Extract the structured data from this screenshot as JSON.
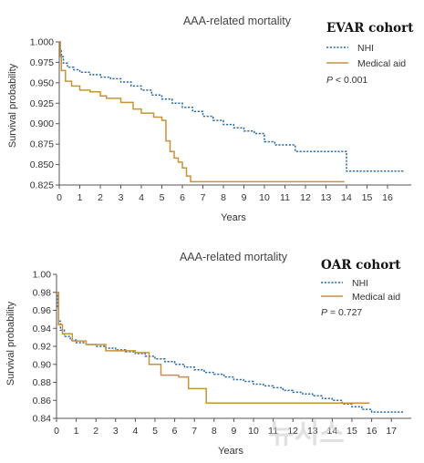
{
  "chart_data": [
    {
      "type": "line",
      "title": "AAA-related mortality",
      "cohort": "EVAR cohort",
      "xlabel": "Years",
      "ylabel": "Survival probability",
      "xlim": [
        0,
        17
      ],
      "ylim": [
        0.825,
        1.0
      ],
      "xticks": [
        "0",
        "1",
        "2",
        "3",
        "4",
        "5",
        "6",
        "7",
        "8",
        "9",
        "10",
        "11",
        "12",
        "13",
        "14",
        "15",
        "16"
      ],
      "yticks": [
        "1.000",
        "0.975",
        "0.950",
        "0.925",
        "0.900",
        "0.875",
        "0.850",
        "0.825"
      ],
      "pvalue": {
        "label": "P",
        "text": " < 0.001"
      },
      "legend_position": "top-right",
      "series": [
        {
          "name": "NHI",
          "color": "#2f6ea6",
          "style": "dashed",
          "x": [
            0,
            0.05,
            0.1,
            0.2,
            0.4,
            0.7,
            1,
            1.5,
            2,
            2.5,
            3,
            3.5,
            4,
            4.5,
            5,
            5.5,
            6,
            6.5,
            7,
            7.5,
            8,
            8.5,
            9,
            9.5,
            10,
            10.5,
            11,
            11.5,
            12,
            12.5,
            13,
            13.5,
            14,
            14.5,
            15,
            15.5,
            16,
            16.8
          ],
          "y": [
            1.0,
            0.99,
            0.982,
            0.974,
            0.969,
            0.966,
            0.963,
            0.96,
            0.957,
            0.955,
            0.951,
            0.946,
            0.941,
            0.935,
            0.93,
            0.925,
            0.92,
            0.915,
            0.909,
            0.904,
            0.899,
            0.895,
            0.891,
            0.888,
            0.878,
            0.874,
            0.874,
            0.866,
            0.866,
            0.866,
            0.866,
            0.866,
            0.842,
            0.842,
            0.842,
            0.842,
            0.842,
            0.842
          ]
        },
        {
          "name": "Medical aid",
          "color": "#c8923a",
          "style": "solid",
          "x": [
            0,
            0.05,
            0.1,
            0.3,
            0.6,
            1,
            1.5,
            2,
            2.3,
            3,
            3.6,
            4,
            4.6,
            5,
            5.2,
            5.4,
            5.6,
            5.8,
            6,
            6.2,
            6.4,
            13.9
          ],
          "y": [
            1.0,
            0.982,
            0.965,
            0.952,
            0.946,
            0.941,
            0.939,
            0.934,
            0.931,
            0.926,
            0.918,
            0.913,
            0.908,
            0.904,
            0.879,
            0.866,
            0.858,
            0.853,
            0.846,
            0.836,
            0.829,
            0.829
          ]
        }
      ]
    },
    {
      "type": "line",
      "title": "AAA-related mortality",
      "cohort": "OAR cohort",
      "xlabel": "Years",
      "ylabel": "Survival probability",
      "xlim": [
        0,
        17.8
      ],
      "ylim": [
        0.84,
        1.0
      ],
      "xticks": [
        "0",
        "1",
        "2",
        "3",
        "4",
        "5",
        "6",
        "7",
        "8",
        "9",
        "10",
        "11",
        "12",
        "13",
        "14",
        "15",
        "16",
        "17"
      ],
      "yticks": [
        "1.00",
        "0.98",
        "0.96",
        "0.94",
        "0.92",
        "0.90",
        "0.88",
        "0.86",
        "0.84"
      ],
      "pvalue": {
        "label": "P",
        "text": " = 0.727"
      },
      "legend_position": "top-right",
      "series": [
        {
          "name": "NHI",
          "color": "#2f6ea6",
          "style": "dashed",
          "x": [
            0,
            0.05,
            0.1,
            0.2,
            0.4,
            0.7,
            1,
            1.5,
            2,
            2.5,
            3,
            3.5,
            4,
            4.5,
            5,
            5.5,
            6,
            6.5,
            7,
            7.5,
            8,
            8.5,
            9,
            9.5,
            10,
            10.5,
            11,
            11.5,
            12,
            12.5,
            13,
            13.5,
            14,
            14.5,
            15,
            15.5,
            16,
            16.5,
            17,
            17.6
          ],
          "y": [
            0.98,
            0.962,
            0.948,
            0.938,
            0.931,
            0.927,
            0.924,
            0.922,
            0.92,
            0.918,
            0.916,
            0.914,
            0.912,
            0.909,
            0.906,
            0.903,
            0.9,
            0.897,
            0.894,
            0.891,
            0.889,
            0.886,
            0.883,
            0.881,
            0.878,
            0.876,
            0.874,
            0.871,
            0.869,
            0.867,
            0.865,
            0.862,
            0.86,
            0.856,
            0.853,
            0.85,
            0.847,
            0.847,
            0.847,
            0.847
          ]
        },
        {
          "name": "Medical aid",
          "color": "#c8923a",
          "style": "solid",
          "x": [
            0,
            0.1,
            0.3,
            0.8,
            1.5,
            2.5,
            4,
            4.7,
            5.3,
            5.6,
            6.2,
            6.7,
            7.2,
            7.6,
            15.9
          ],
          "y": [
            0.98,
            0.944,
            0.934,
            0.926,
            0.922,
            0.915,
            0.913,
            0.9,
            0.888,
            0.888,
            0.886,
            0.873,
            0.873,
            0.857,
            0.857
          ]
        }
      ]
    }
  ],
  "watermark": "뉴시스"
}
